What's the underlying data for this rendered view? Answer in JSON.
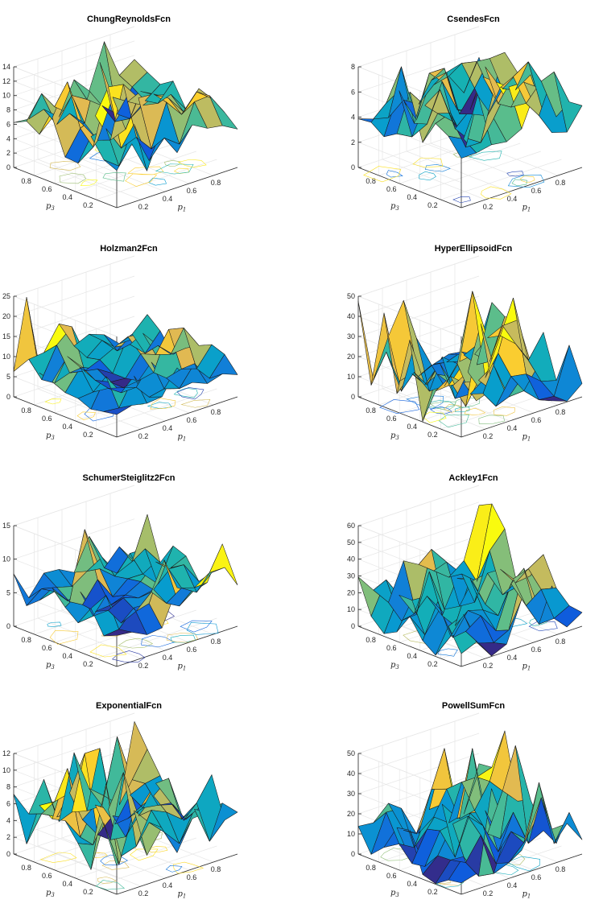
{
  "figure": {
    "layout": "4x2 grid of 3-D surface plots with contour projections"
  },
  "chart_data": [
    {
      "type": "surface",
      "title": "ChungReynoldsFcn",
      "xlabel": "p1",
      "ylabel": "p3",
      "zlim": [
        0,
        14
      ],
      "zticks": [
        0,
        2,
        4,
        6,
        8,
        10,
        12,
        14
      ],
      "xticks": [
        0.2,
        0.4,
        0.6,
        0.8
      ],
      "yticks": [
        0.2,
        0.4,
        0.6,
        0.8
      ],
      "grid": true,
      "contour_projection": true,
      "seed": 11,
      "base": 7,
      "spike": 5,
      "rows_p3_high_to_low": "estimated"
    },
    {
      "type": "surface",
      "title": "CsendesFcn",
      "xlabel": "p1",
      "ylabel": "p3",
      "zlim": [
        0,
        8
      ],
      "zticks": [
        0,
        2,
        4,
        6,
        8
      ],
      "xticks": [
        0.2,
        0.4,
        0.6,
        0.8
      ],
      "yticks": [
        0.2,
        0.4,
        0.6,
        0.8
      ],
      "grid": true,
      "contour_projection": true,
      "seed": 23,
      "base": 5,
      "spike": 3
    },
    {
      "type": "surface",
      "title": "Holzman2Fcn",
      "xlabel": "p1",
      "ylabel": "p3",
      "zlim": [
        0,
        25
      ],
      "zticks": [
        0,
        5,
        10,
        15,
        20,
        25
      ],
      "xticks": [
        0.2,
        0.4,
        0.6,
        0.8
      ],
      "yticks": [
        0.2,
        0.4,
        0.6,
        0.8
      ],
      "grid": true,
      "contour_projection": true,
      "seed": 37,
      "base": 7,
      "spike": 4,
      "peak": 26
    },
    {
      "type": "surface",
      "title": "HyperEllipsoidFcn",
      "xlabel": "p1",
      "ylabel": "p3",
      "zlim": [
        0,
        50
      ],
      "zticks": [
        0,
        10,
        20,
        30,
        40,
        50
      ],
      "xticks": [
        0.2,
        0.4,
        0.6,
        0.8
      ],
      "yticks": [
        0.2,
        0.4,
        0.6,
        0.8
      ],
      "grid": true,
      "contour_projection": true,
      "seed": 41,
      "base": 12,
      "spike": 20
    },
    {
      "type": "surface",
      "title": "SchumerSteiglitz2Fcn",
      "xlabel": "p1",
      "ylabel": "p3",
      "zlim": [
        0,
        15
      ],
      "zticks": [
        0,
        5,
        10,
        15
      ],
      "xticks": [
        0.2,
        0.4,
        0.6,
        0.8
      ],
      "yticks": [
        0.2,
        0.4,
        0.6,
        0.8
      ],
      "grid": true,
      "contour_projection": true,
      "seed": 53,
      "base": 6,
      "spike": 4
    },
    {
      "type": "surface",
      "title": "Ackley1Fcn",
      "xlabel": "p1",
      "ylabel": "p3",
      "zlim": [
        0,
        60
      ],
      "zticks": [
        0,
        10,
        20,
        30,
        40,
        50,
        60
      ],
      "xticks": [
        0.2,
        0.4,
        0.6,
        0.8
      ],
      "yticks": [
        0.2,
        0.4,
        0.6,
        0.8
      ],
      "grid": true,
      "contour_projection": true,
      "seed": 67,
      "base": 15,
      "spike": 22
    },
    {
      "type": "surface",
      "title": "ExponentialFcn",
      "xlabel": "p1",
      "ylabel": "p3",
      "zlim": [
        0,
        12
      ],
      "zticks": [
        0,
        2,
        4,
        6,
        8,
        10,
        12
      ],
      "xticks": [
        0.2,
        0.4,
        0.6,
        0.8
      ],
      "yticks": [
        0.2,
        0.4,
        0.6,
        0.8
      ],
      "grid": true,
      "contour_projection": true,
      "seed": 79,
      "base": 5,
      "spike": 5
    },
    {
      "type": "surface",
      "title": "PowellSumFcn",
      "xlabel": "p1",
      "ylabel": "p3",
      "zlim": [
        0,
        50
      ],
      "zticks": [
        0,
        10,
        20,
        30,
        40,
        50
      ],
      "xticks": [
        0.2,
        0.4,
        0.6,
        0.8
      ],
      "yticks": [
        0.2,
        0.4,
        0.6,
        0.8
      ],
      "grid": true,
      "contour_projection": true,
      "seed": 97,
      "base": 12,
      "spike": 20
    }
  ]
}
